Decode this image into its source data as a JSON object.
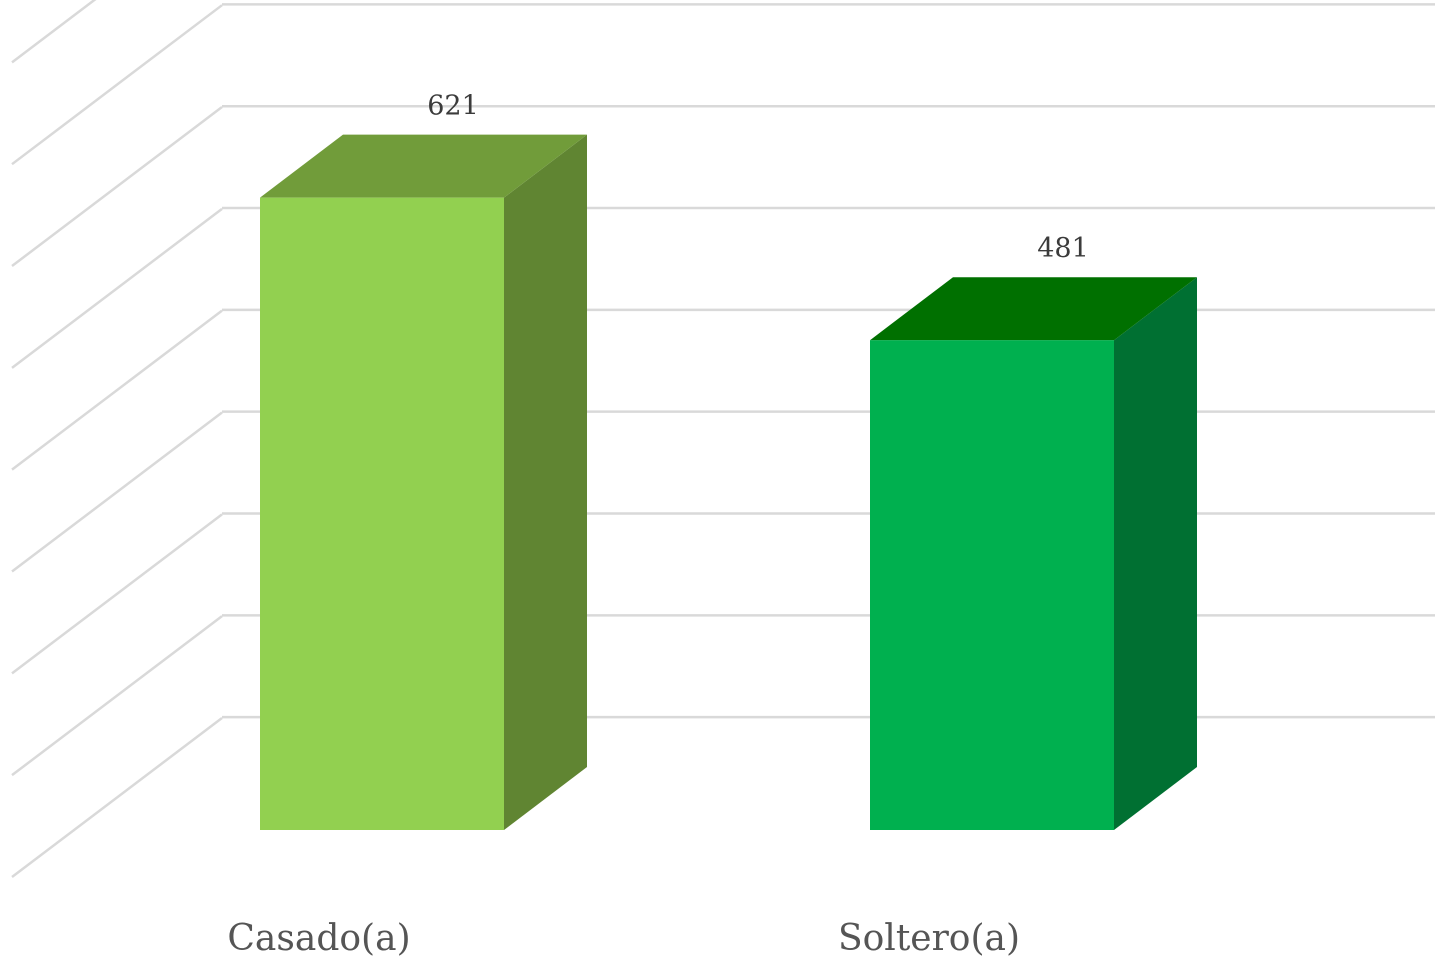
{
  "chart_data": {
    "type": "bar",
    "style": "3d-column",
    "categories": [
      "Casado(a)",
      "Soltero(a)"
    ],
    "values": [
      621,
      481
    ],
    "data_labels": [
      "621",
      "481"
    ],
    "colors": [
      {
        "front": "#92d050",
        "side": "#608532",
        "top": "#719c3a"
      },
      {
        "front": "#00b04f",
        "side": "#007032",
        "top": "#007000"
      }
    ],
    "ylim": [
      0,
      800
    ],
    "grid_step": 100,
    "grid": true,
    "legend": "none",
    "title": "",
    "xlabel": "",
    "ylabel": ""
  }
}
